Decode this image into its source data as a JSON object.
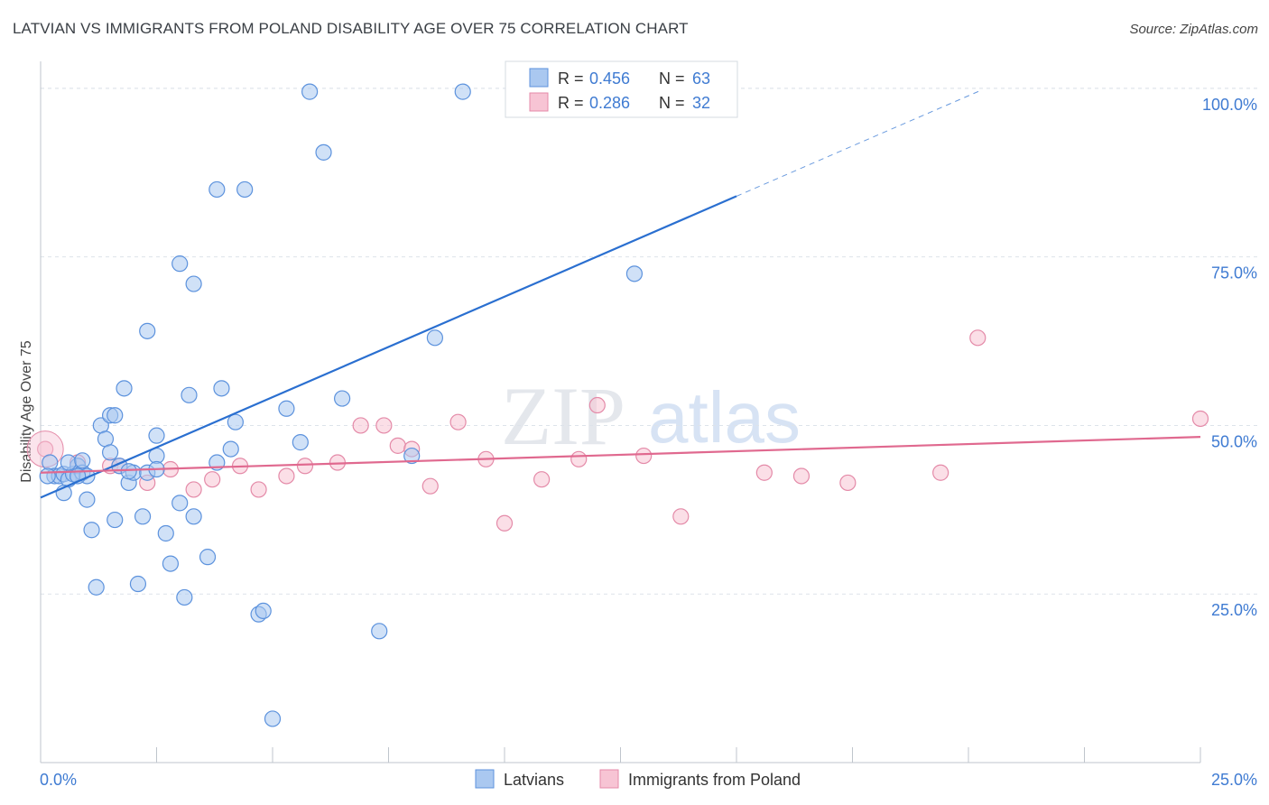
{
  "title": "LATVIAN VS IMMIGRANTS FROM POLAND DISABILITY AGE OVER 75 CORRELATION CHART",
  "source": "Source: ZipAtlas.com",
  "watermark": {
    "zip": "ZIP",
    "atlas": "atlas"
  },
  "colors": {
    "blue_fill": "#aac8f0",
    "blue_stroke": "#5c92dd",
    "blue_line": "#2a6fd0",
    "pink_fill": "#f7c4d4",
    "pink_stroke": "#e48aa8",
    "pink_line": "#e0698f",
    "axis_text": "#3f7bd2",
    "grid": "#dde3ea"
  },
  "legend": {
    "r_label": "R =",
    "n_label": "N =",
    "rows": [
      {
        "r": "0.456",
        "n": "63",
        "series": "Latvians"
      },
      {
        "r": "0.286",
        "n": "32",
        "series": "Immigrants from Poland"
      }
    ]
  },
  "chart_data": {
    "type": "scatter",
    "title": "LATVIAN VS IMMIGRANTS FROM POLAND DISABILITY AGE OVER 75 CORRELATION CHART",
    "ylabel": "Disability Age Over 75",
    "xlabel": "",
    "xlim": [
      0,
      25
    ],
    "ylim": [
      0,
      104
    ],
    "x_tick_labels": [
      "0.0%",
      "25.0%"
    ],
    "y_ticks": [
      25,
      50,
      75,
      100
    ],
    "y_tick_labels": [
      "25.0%",
      "50.0%",
      "75.0%",
      "100.0%"
    ],
    "series": [
      {
        "name": "Latvians",
        "color": "#5c92dd",
        "points": [
          [
            0.2,
            44.5
          ],
          [
            0.3,
            42.5
          ],
          [
            0.4,
            42.5
          ],
          [
            0.5,
            42.8
          ],
          [
            0.6,
            42.0
          ],
          [
            0.7,
            42.8
          ],
          [
            0.8,
            44.0
          ],
          [
            0.9,
            43.0
          ],
          [
            1.0,
            42.5
          ],
          [
            0.5,
            40.0
          ],
          [
            1.0,
            39.0
          ],
          [
            1.1,
            34.5
          ],
          [
            1.2,
            26.0
          ],
          [
            1.3,
            50.0
          ],
          [
            1.4,
            48.0
          ],
          [
            1.5,
            51.5
          ],
          [
            1.6,
            51.5
          ],
          [
            1.5,
            46.0
          ],
          [
            1.6,
            36.0
          ],
          [
            1.7,
            44.0
          ],
          [
            1.8,
            55.5
          ],
          [
            1.9,
            41.5
          ],
          [
            2.0,
            43.0
          ],
          [
            2.1,
            26.5
          ],
          [
            2.2,
            36.5
          ],
          [
            2.3,
            43.0
          ],
          [
            2.3,
            64.0
          ],
          [
            2.5,
            45.5
          ],
          [
            2.5,
            48.5
          ],
          [
            2.7,
            34.0
          ],
          [
            2.8,
            29.5
          ],
          [
            3.0,
            38.5
          ],
          [
            3.0,
            74.0
          ],
          [
            3.1,
            24.5
          ],
          [
            3.2,
            54.5
          ],
          [
            3.3,
            36.5
          ],
          [
            3.3,
            71.0
          ],
          [
            3.6,
            30.5
          ],
          [
            3.8,
            85.0
          ],
          [
            3.8,
            44.5
          ],
          [
            3.9,
            55.5
          ],
          [
            4.1,
            46.5
          ],
          [
            4.2,
            50.5
          ],
          [
            4.4,
            85.0
          ],
          [
            4.7,
            22.0
          ],
          [
            4.8,
            22.5
          ],
          [
            5.0,
            6.5
          ],
          [
            5.3,
            52.5
          ],
          [
            5.6,
            47.5
          ],
          [
            5.8,
            99.5
          ],
          [
            6.1,
            90.5
          ],
          [
            6.5,
            54.0
          ],
          [
            7.3,
            19.5
          ],
          [
            8.0,
            45.5
          ],
          [
            8.5,
            63.0
          ],
          [
            9.1,
            99.5
          ],
          [
            12.8,
            72.5
          ],
          [
            0.15,
            42.5
          ],
          [
            0.6,
            44.5
          ],
          [
            0.9,
            44.8
          ],
          [
            0.8,
            42.5
          ],
          [
            1.9,
            43.2
          ],
          [
            2.5,
            43.5
          ]
        ]
      },
      {
        "name": "Immigrants from Poland",
        "color": "#e48aa8",
        "points": [
          [
            0.1,
            46.5
          ],
          [
            0.8,
            44.5
          ],
          [
            1.5,
            44.0
          ],
          [
            1.7,
            44.0
          ],
          [
            2.3,
            41.5
          ],
          [
            2.8,
            43.5
          ],
          [
            3.3,
            40.5
          ],
          [
            3.7,
            42.0
          ],
          [
            4.3,
            44.0
          ],
          [
            4.7,
            40.5
          ],
          [
            5.3,
            42.5
          ],
          [
            5.7,
            44.0
          ],
          [
            6.4,
            44.5
          ],
          [
            6.9,
            50.0
          ],
          [
            7.4,
            50.0
          ],
          [
            7.7,
            47.0
          ],
          [
            8.0,
            46.5
          ],
          [
            8.4,
            41.0
          ],
          [
            9.0,
            50.5
          ],
          [
            9.6,
            45.0
          ],
          [
            10.0,
            35.5
          ],
          [
            10.8,
            42.0
          ],
          [
            11.6,
            45.0
          ],
          [
            12.0,
            53.0
          ],
          [
            13.0,
            45.5
          ],
          [
            13.8,
            36.5
          ],
          [
            15.6,
            43.0
          ],
          [
            16.4,
            42.5
          ],
          [
            17.4,
            41.5
          ],
          [
            19.4,
            43.0
          ],
          [
            20.2,
            63.0
          ],
          [
            25.0,
            51.0
          ]
        ]
      }
    ],
    "trend_lines": [
      {
        "series": "Latvians",
        "x": [
          0,
          15
        ],
        "y": [
          39.3,
          84.0
        ],
        "dashed_extension_x": [
          15,
          20.3
        ]
      },
      {
        "series": "Immigrants from Poland",
        "x": [
          0,
          25
        ],
        "y": [
          43.0,
          48.3
        ]
      }
    ],
    "legend_position": "top-center and bottom"
  }
}
